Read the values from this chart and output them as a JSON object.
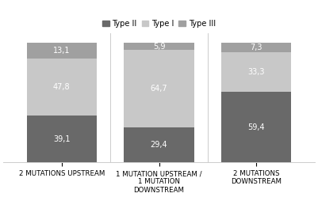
{
  "categories": [
    "2 MUTATIONS UPSTREAM",
    "1 MUTATION UPSTREAM /\n1 MUTATION\nDOWNSTREAM",
    "2 MUTATIONS\nDOWNSTREAM"
  ],
  "type_ii": [
    39.1,
    29.4,
    59.4
  ],
  "type_i": [
    47.8,
    64.7,
    33.3
  ],
  "type_iii": [
    13.1,
    5.9,
    7.3
  ],
  "labels_ii": [
    "39,1",
    "29,4",
    "59,4"
  ],
  "labels_i": [
    "47,8",
    "64,7",
    "33,3"
  ],
  "labels_iii": [
    "13,1",
    "5,9",
    "7,3"
  ],
  "color_type_ii": "#696969",
  "color_type_i": "#c8c8c8",
  "color_type_iii": "#a0a0a0",
  "legend_labels": [
    "Type II",
    "Type I",
    "Type III"
  ],
  "bar_width": 0.72,
  "background_color": "#ffffff",
  "label_color_white": "#ffffff",
  "label_fontsize": 7,
  "legend_fontsize": 7,
  "tick_fontsize": 6.2
}
